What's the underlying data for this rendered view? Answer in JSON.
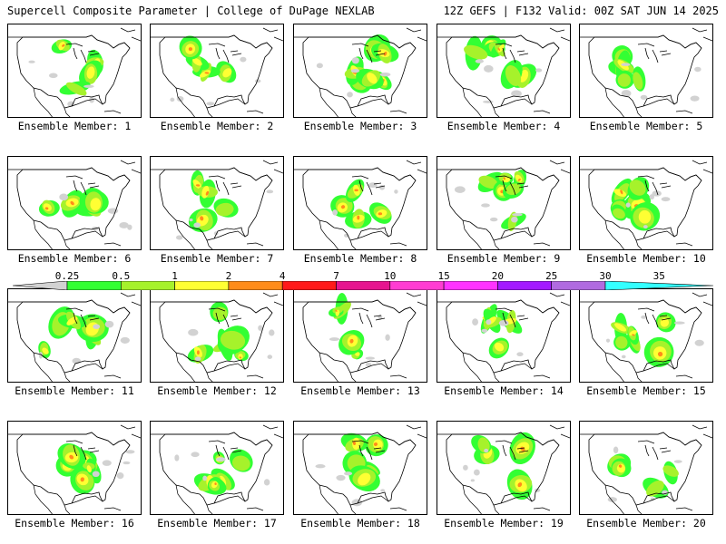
{
  "header": {
    "left": "Supercell Composite Parameter | College of DuPage NEXLAB",
    "right": "12Z GEFS | F132 Valid: 00Z SAT JUN 14 2025"
  },
  "colorbar": {
    "ticks": [
      "0.25",
      "0.5",
      "1",
      "2",
      "4",
      "7",
      "10",
      "15",
      "20",
      "25",
      "30",
      "35"
    ],
    "colors": [
      "#d2d2d2",
      "#33ff33",
      "#a6f22b",
      "#ffff33",
      "#ff8c1a",
      "#ff1a1a",
      "#e6158f",
      "#ff3cd2",
      "#ff33ff",
      "#a31aff",
      "#b06be0",
      "#33ffff"
    ]
  },
  "members": [
    {
      "label": "Ensemble Member: 1"
    },
    {
      "label": "Ensemble Member: 2"
    },
    {
      "label": "Ensemble Member: 3"
    },
    {
      "label": "Ensemble Member: 4"
    },
    {
      "label": "Ensemble Member: 5"
    },
    {
      "label": "Ensemble Member: 6"
    },
    {
      "label": "Ensemble Member: 7"
    },
    {
      "label": "Ensemble Member: 8"
    },
    {
      "label": "Ensemble Member: 9"
    },
    {
      "label": "Ensemble Member: 10"
    },
    {
      "label": "Ensemble Member: 11"
    },
    {
      "label": "Ensemble Member: 12"
    },
    {
      "label": "Ensemble Member: 13"
    },
    {
      "label": "Ensemble Member: 14"
    },
    {
      "label": "Ensemble Member: 15"
    },
    {
      "label": "Ensemble Member: 16"
    },
    {
      "label": "Ensemble Member: 17"
    },
    {
      "label": "Ensemble Member: 18"
    },
    {
      "label": "Ensemble Member: 19"
    },
    {
      "label": "Ensemble Member: 20"
    }
  ]
}
